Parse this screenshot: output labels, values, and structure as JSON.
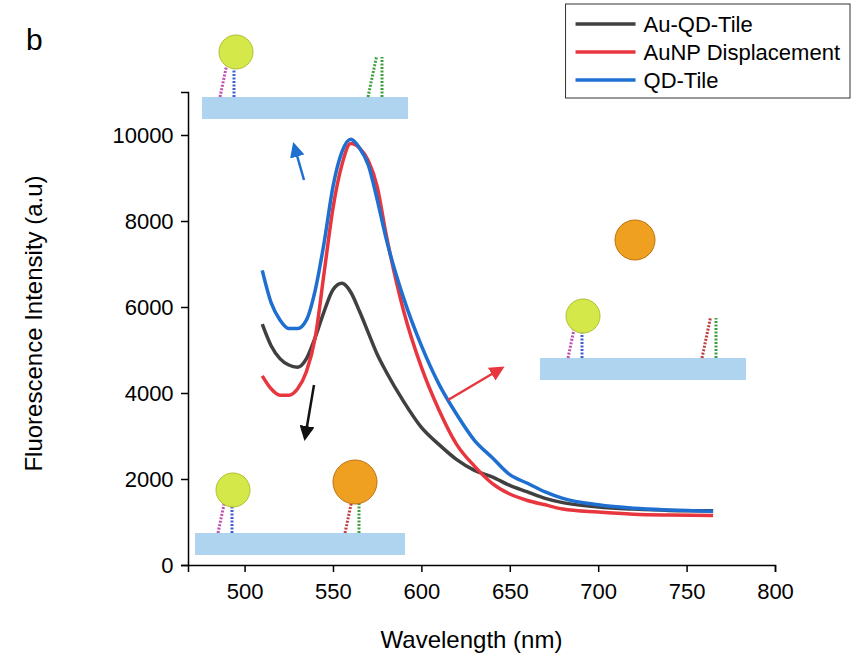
{
  "chart_data": {
    "type": "line",
    "panel_label": "b",
    "x_label": "Wavelength (nm)",
    "y_label": "Fluorescence Intensity (a.u)",
    "x": [
      510,
      515,
      520,
      525,
      530,
      535,
      540,
      545,
      550,
      555,
      560,
      565,
      570,
      575,
      580,
      590,
      600,
      610,
      620,
      630,
      640,
      650,
      660,
      670,
      680,
      700,
      720,
      740,
      765
    ],
    "series": [
      {
        "name": "Au-QD-Tile",
        "color": "#404040",
        "values": [
          5600,
          5100,
          4800,
          4650,
          4600,
          4800,
          5300,
          5900,
          6400,
          6550,
          6350,
          5900,
          5400,
          4900,
          4500,
          3800,
          3200,
          2800,
          2450,
          2200,
          2050,
          1850,
          1700,
          1550,
          1450,
          1350,
          1300,
          1270,
          1260
        ]
      },
      {
        "name": "AuNP Displacement",
        "color": "#e8363f",
        "values": [
          4400,
          4100,
          3950,
          3950,
          4100,
          4500,
          5300,
          6800,
          8300,
          9300,
          9800,
          9700,
          9400,
          8800,
          7700,
          5900,
          4600,
          3600,
          2800,
          2300,
          1900,
          1650,
          1500,
          1400,
          1300,
          1230,
          1180,
          1160,
          1150
        ]
      },
      {
        "name": "QD-Tile",
        "color": "#1e6fd0",
        "values": [
          6850,
          6100,
          5700,
          5500,
          5500,
          5700,
          6400,
          7500,
          8800,
          9600,
          9900,
          9700,
          9300,
          8500,
          7600,
          6200,
          5100,
          4200,
          3500,
          2900,
          2500,
          2100,
          1900,
          1700,
          1550,
          1400,
          1320,
          1280,
          1250
        ]
      }
    ],
    "xlim": [
      468,
      800
    ],
    "ylim": [
      0,
      11000
    ],
    "xticks": [
      500,
      550,
      600,
      650,
      700,
      750,
      800
    ],
    "yticks": [
      0,
      2000,
      4000,
      6000,
      8000,
      10000
    ],
    "legend": "upper right",
    "grid": false
  }
}
